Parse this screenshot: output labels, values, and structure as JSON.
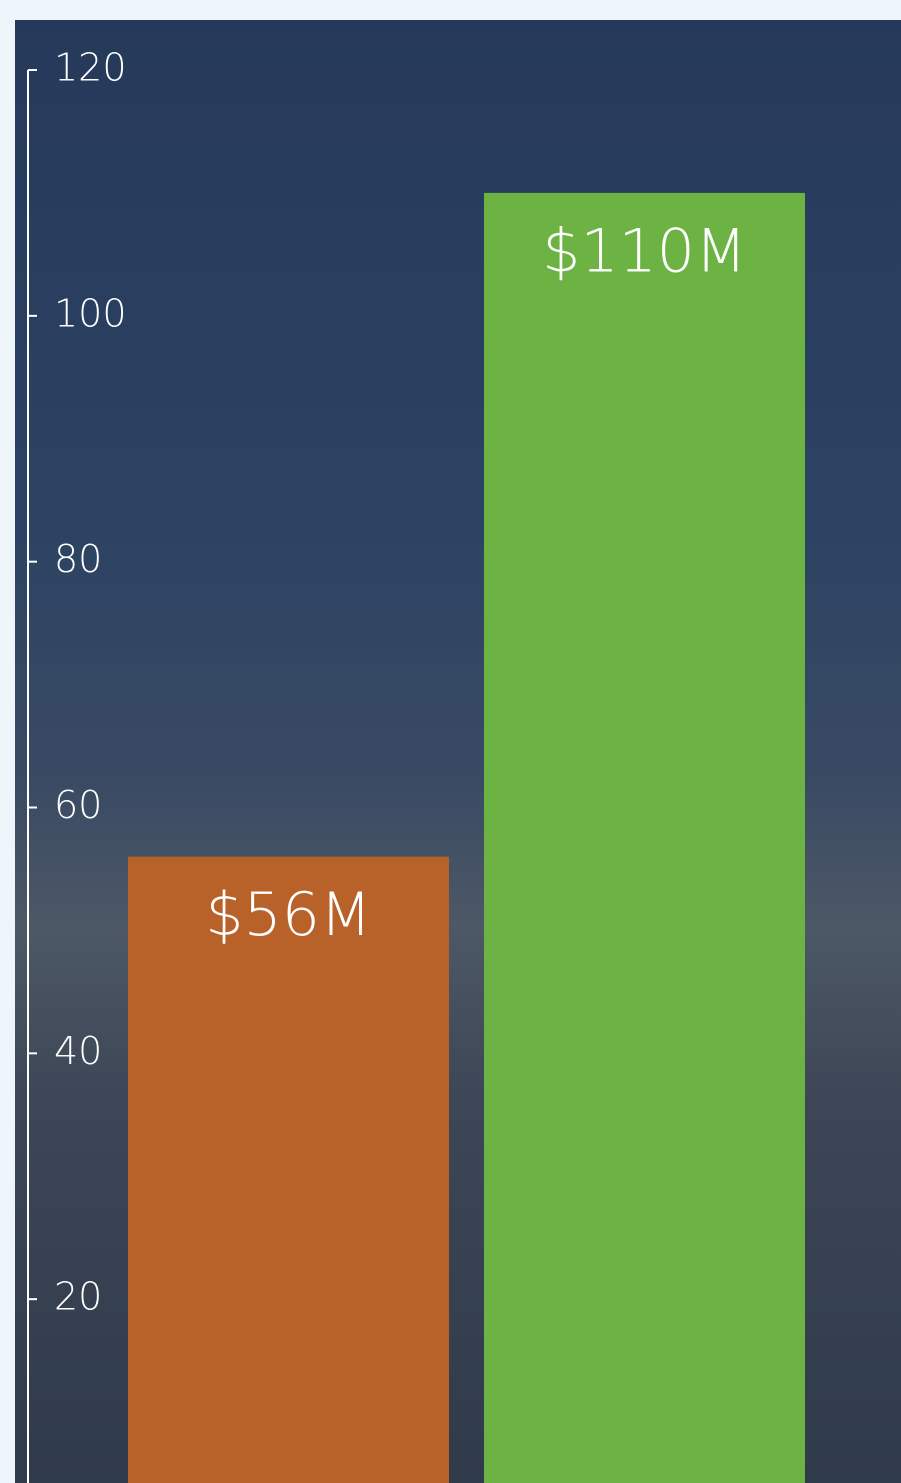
{
  "chart_data": {
    "type": "bar",
    "values": [
      56,
      110
    ],
    "value_labels": [
      "$56M",
      "$110M"
    ],
    "colors": [
      "#b8622a",
      "#6db344"
    ],
    "ylim": [
      0,
      120
    ],
    "yticks": [
      20,
      40,
      60,
      80,
      100,
      120
    ]
  }
}
